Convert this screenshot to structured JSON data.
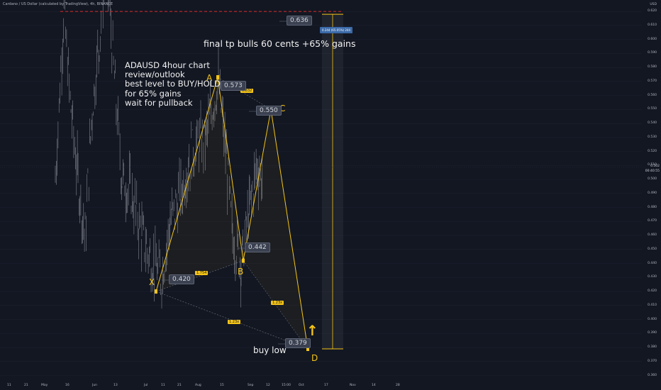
{
  "header": "Cardano / US Dollar (calculated by TradingView), 4h, BINANCE",
  "notes": {
    "main": [
      "ADAUSD 4hour chart",
      "review/outlook",
      "best level to BUY/HOLD",
      "for 65% gains",
      "wait for pullback"
    ],
    "target": "final tp bulls 60 cents +65% gains",
    "buy": "buy low"
  },
  "range_tip": "0.244 (65.05%) 244",
  "current_price": "0.502",
  "current_time": "00:40:55",
  "arrow": "↑",
  "colors": {
    "background": "#131722",
    "pattern": "#f5c518",
    "dashed": "#c62828",
    "candle": "#d1d4dc",
    "label_bg": "#3b4150"
  },
  "chart_data": {
    "type": "line",
    "title": "",
    "y_axis": {
      "unit": "USD",
      "ticks": [
        "0.630",
        "0.620",
        "0.610",
        "0.600",
        "0.590",
        "0.580",
        "0.570",
        "0.560",
        "0.550",
        "0.540",
        "0.530",
        "0.520",
        "0.510",
        "0.500",
        "0.490",
        "0.480",
        "0.470",
        "0.460",
        "0.450",
        "0.440",
        "0.430",
        "0.420",
        "0.410",
        "0.400",
        "0.390",
        "0.380",
        "0.370",
        "0.360"
      ]
    },
    "x_axis": {
      "ticks": [
        "11",
        "21",
        "May",
        "16",
        "Jun",
        "13",
        "Jul",
        "11",
        "21",
        "Aug",
        "15",
        "Sep",
        "12",
        "15:00",
        "Oct",
        "17",
        "Nov",
        "14",
        "28"
      ]
    },
    "harmonic_pattern": {
      "points": [
        {
          "label": "X",
          "value": 0.42
        },
        {
          "label": "A",
          "value": 0.573
        },
        {
          "label": "B",
          "value": 0.442
        },
        {
          "label": "C",
          "value": 0.55
        },
        {
          "label": "D",
          "value": 0.379
        }
      ],
      "ratios": [
        "0.832",
        "1.754",
        "1.23x",
        "1.23x"
      ]
    },
    "price_labels": [
      "0.636",
      "0.573",
      "0.550",
      "0.442",
      "0.420",
      "0.379"
    ],
    "target_line": 0.62,
    "ylim": [
      0.355,
      0.64
    ]
  }
}
